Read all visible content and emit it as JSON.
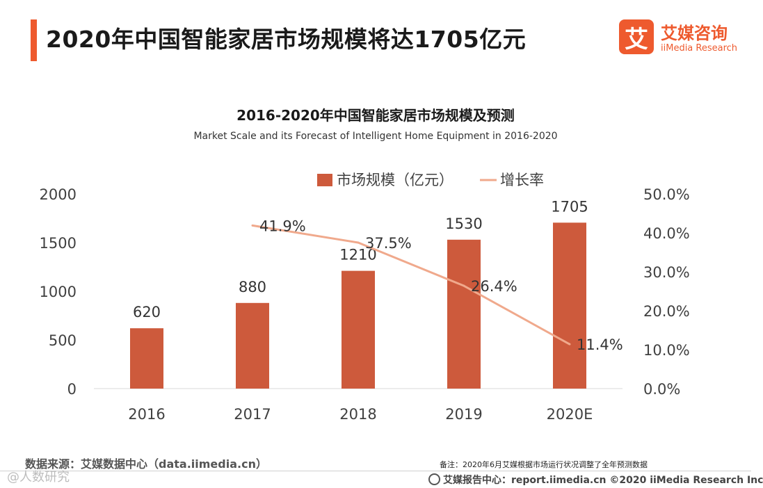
{
  "header": {
    "title": "2020年中国智能家居市场规模将达1705亿元"
  },
  "logo": {
    "mark": "艾",
    "cn": "艾媒咨询",
    "en": "iiMedia Research"
  },
  "chart_data": {
    "type": "bar",
    "title": "2016-2020年中国智能家居市场规模及预测",
    "subtitle": "Market Scale and its Forecast of Intelligent Home Equipment in 2016-2020",
    "categories": [
      "2016",
      "2017",
      "2018",
      "2019",
      "2020E"
    ],
    "series": [
      {
        "name": "市场规模（亿元）",
        "type": "bar",
        "axis": "left",
        "values": [
          620,
          880,
          1210,
          1530,
          1705
        ],
        "labels": [
          "620",
          "880",
          "1210",
          "1530",
          "1705"
        ]
      },
      {
        "name": "增长率",
        "type": "line",
        "axis": "right",
        "values": [
          null,
          41.9,
          37.5,
          26.4,
          11.4
        ],
        "labels": [
          "",
          "41.9%",
          "37.5%",
          "26.4%",
          "11.4%"
        ]
      }
    ],
    "ylim": [
      0,
      2000
    ],
    "yticks": [
      "0",
      "500",
      "1000",
      "1500",
      "2000"
    ],
    "y2lim": [
      0,
      50
    ],
    "y2ticks": [
      "0.0%",
      "10.0%",
      "20.0%",
      "30.0%",
      "40.0%",
      "50.0%"
    ],
    "legend_position": "top-center",
    "colors": {
      "bar": "#cd5a3c",
      "line": "#f0a98c"
    }
  },
  "footer": {
    "source": "数据来源：艾媒数据中心（data.iimedia.cn）",
    "note": "备注：2020年6月艾媒根据市场运行状况调整了全年预测数据",
    "report": "艾媒报告中心：report.iimedia.cn ©2020 iiMedia Research Inc",
    "watermark": "@人数研究"
  }
}
